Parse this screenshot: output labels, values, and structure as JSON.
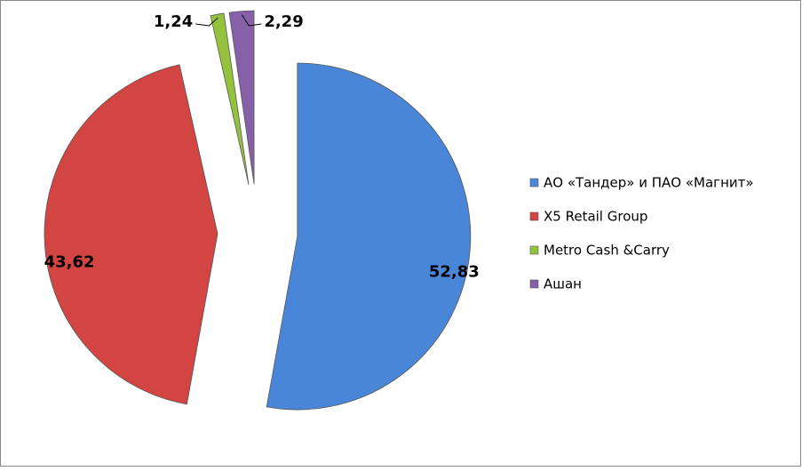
{
  "chart_data": {
    "type": "pie",
    "categories": [
      "АО «Тандер» и ПАО «Магнит»",
      "X5 Retail Group",
      "Metro Cash &Carry",
      "Ашан"
    ],
    "values": [
      52.83,
      43.62,
      1.24,
      2.29
    ],
    "value_labels": [
      "52,83",
      "43,62",
      "1,24",
      "2,29"
    ],
    "colors": [
      "#4a86d8",
      "#d24542",
      "#94c23c",
      "#8661a9"
    ],
    "legend": "right"
  }
}
